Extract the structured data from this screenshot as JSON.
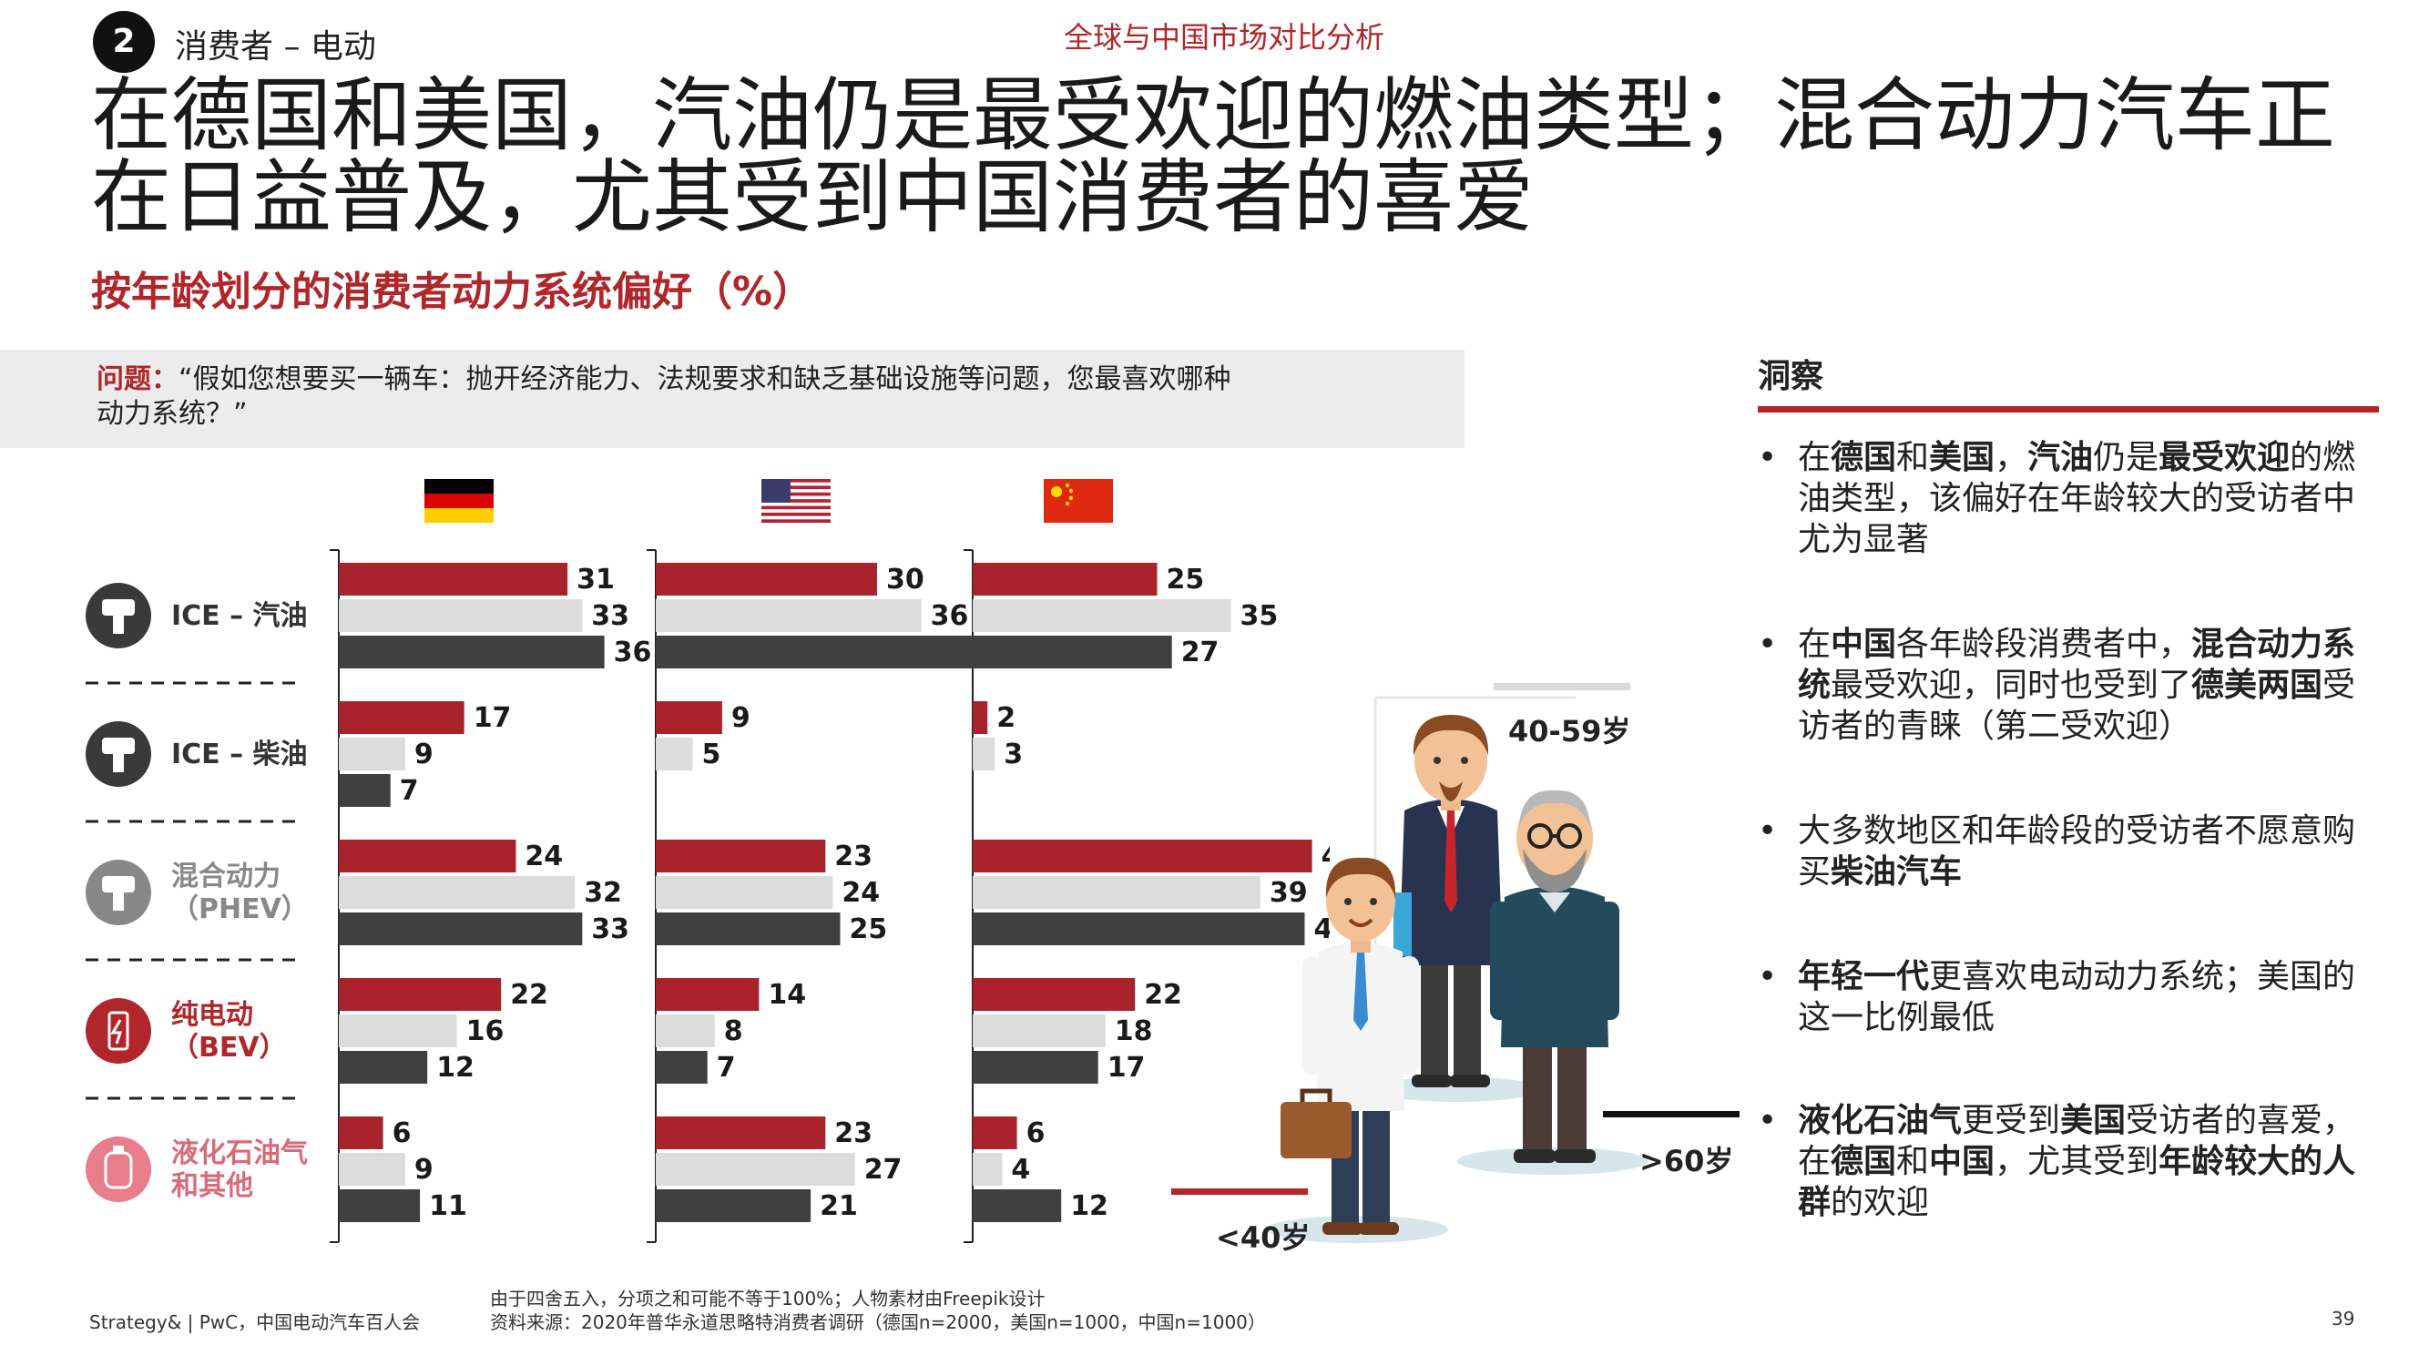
{
  "header": {
    "badge_number": "2",
    "section_label": "消费者 – 电动",
    "banner": "全球与中国市场对比分析"
  },
  "title_line1": "在德国和美国，汽油仍是最受欢迎的燃油类型；混合动力汽车正",
  "title_line2": "在日益普及，尤其受到中国消费者的喜爱",
  "subtitle": "按年龄划分的消费者动力系统偏好（%）",
  "question": {
    "label": "问题：",
    "text_line1": "“假如您想要买一辆车：抛开经济能力、法规要求和缺乏基础设施等问题，您最喜欢哪种",
    "text_line2": "动力系统？”"
  },
  "colors": {
    "accent": "#b0262a",
    "under40": "#a8232b",
    "age40_59": "#dcdcdc",
    "over60": "#404040"
  },
  "chart_data": {
    "type": "bar",
    "orientation": "horizontal",
    "countries": [
      "德国",
      "美国",
      "中国"
    ],
    "country_icons": [
      "germany-flag-icon",
      "usa-flag-icon",
      "china-flag-icon"
    ],
    "categories": [
      {
        "label_lines": [
          "ICE – 汽油"
        ],
        "icon": "piston-icon",
        "label_color": "#333333"
      },
      {
        "label_lines": [
          "ICE – 柴油"
        ],
        "icon": "piston-icon",
        "label_color": "#333333"
      },
      {
        "label_lines": [
          "混合动力",
          "（PHEV）"
        ],
        "icon": "hybrid-icon",
        "label_color": "#888888"
      },
      {
        "label_lines": [
          "纯电动",
          "（BEV）"
        ],
        "icon": "battery-icon",
        "label_color": "#b0262a"
      },
      {
        "label_lines": [
          "液化石油气",
          "和其他"
        ],
        "icon": "gas-tank-icon",
        "label_color": "#d96a7a"
      }
    ],
    "series": [
      {
        "name": "<40岁",
        "color": "#a8232b"
      },
      {
        "name": "40-59岁",
        "color": "#dcdcdc"
      },
      {
        "name": ">60岁",
        "color": "#404040"
      }
    ],
    "values": [
      [
        [
          31,
          33,
          36
        ],
        [
          17,
          9,
          7
        ],
        [
          24,
          32,
          33
        ],
        [
          22,
          16,
          12
        ],
        [
          6,
          9,
          11
        ]
      ],
      [
        [
          30,
          36,
          46
        ],
        [
          9,
          5,
          null
        ],
        [
          23,
          24,
          25
        ],
        [
          14,
          8,
          7
        ],
        [
          23,
          27,
          21
        ]
      ],
      [
        [
          25,
          35,
          27
        ],
        [
          2,
          3,
          null
        ],
        [
          46,
          39,
          45
        ],
        [
          22,
          18,
          17
        ],
        [
          6,
          4,
          12
        ]
      ]
    ],
    "xlim": [
      0,
      50
    ]
  },
  "age_labels": {
    "under40": "<40岁",
    "mid": "40-59岁",
    "over60": ">60岁"
  },
  "insights": {
    "title": "洞察",
    "items": [
      {
        "html": "在<b>德国</b>和<b>美国</b>，<b>汽油</b>仍是<b>最受欢迎</b>的燃油类型，该偏好在年龄较大的受访者中尤为显著"
      },
      {
        "html": "在<b>中国</b>各年龄段消费者中，<b>混合动力系统</b>最受欢迎，同时也受到了<b>德美两国</b>受访者的青睐（第二受欢迎）"
      },
      {
        "html": "大多数地区和年龄段的受访者不愿意购买<b>柴油汽车</b>"
      },
      {
        "html": "<b>年轻一代</b>更喜欢电动动力系统；美国的这一比例最低"
      },
      {
        "html": "<b>液化石油气</b>更受到<b>美国</b>受访者的喜爱，在<b>德国</b>和<b>中国</b>，尤其受到<b>年龄较大的人群</b>的欢迎"
      }
    ]
  },
  "footer": {
    "left": "Strategy& | PwC，中国电动汽车百人会",
    "note1": "由于四舍五入，分项之和可能不等于100%；人物素材由Freepik设计",
    "note2": "资料来源：2020年普华永道思略特消费者调研（德国n=2000，美国n=1000，中国n=1000）",
    "page": "39"
  }
}
